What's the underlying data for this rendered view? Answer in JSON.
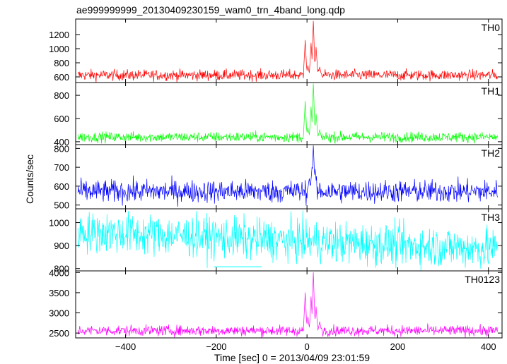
{
  "chart_data": {
    "type": "line",
    "title": "ae999999999_20130409230159_wam0_trn_4band_long.qdp",
    "xlabel": "Time [sec] 0 = 2013/04/09 23:01:59",
    "ylabel": "Counts/sec",
    "xlim": [
      -510,
      430
    ],
    "x_ticks": [
      -400,
      -200,
      0,
      200,
      400
    ],
    "x_tick_labels": [
      "−400",
      "−200",
      "0",
      "200",
      "400"
    ],
    "grid": false,
    "panels": [
      {
        "name": "TH0",
        "color": "#ff0000",
        "ylim": [
          520,
          1420
        ],
        "y_ticks": [
          600,
          800,
          1000,
          1200
        ],
        "baseline": 625,
        "noise": 38,
        "features": [
          {
            "x": -4,
            "value": 1120
          },
          {
            "x": 2,
            "value": 760
          },
          {
            "x": 9,
            "value": 1080
          },
          {
            "x": 14,
            "value": 1390
          },
          {
            "x": 20,
            "value": 1020
          },
          {
            "x": 28,
            "value": 740
          }
        ]
      },
      {
        "name": "TH1",
        "color": "#00ff00",
        "ylim": [
          375,
          910
        ],
        "y_ticks": [
          400,
          600,
          800
        ],
        "baseline": 440,
        "noise": 22,
        "features": [
          {
            "x": -4,
            "value": 750
          },
          {
            "x": 2,
            "value": 520
          },
          {
            "x": 9,
            "value": 700
          },
          {
            "x": 14,
            "value": 900
          },
          {
            "x": 20,
            "value": 640
          },
          {
            "x": 28,
            "value": 500
          }
        ]
      },
      {
        "name": "TH2",
        "color": "#0000ff",
        "ylim": [
          480,
          820
        ],
        "y_ticks": [
          500,
          600,
          700,
          800
        ],
        "baseline": 572,
        "noise": 30,
        "features": [
          {
            "x": 5,
            "value": 640
          },
          {
            "x": 11,
            "value": 700
          },
          {
            "x": 14,
            "value": 815
          },
          {
            "x": 18,
            "value": 690
          }
        ]
      },
      {
        "name": "TH3",
        "color": "#00ffff",
        "ylim": [
          790,
          1060
        ],
        "y_ticks": [
          800,
          900,
          1000
        ],
        "baseline_start": 960,
        "baseline_end": 885,
        "noise": 45,
        "segment": {
          "x0": -205,
          "x1": -100,
          "value": 808
        }
      },
      {
        "name": "TH0123",
        "color": "#ff00ff",
        "ylim": [
          2380,
          4040
        ],
        "y_ticks": [
          2500,
          3000,
          3500,
          4000
        ],
        "baseline": 2560,
        "noise": 65,
        "features": [
          {
            "x": -4,
            "value": 3500
          },
          {
            "x": 2,
            "value": 2900
          },
          {
            "x": 9,
            "value": 3400
          },
          {
            "x": 14,
            "value": 4000
          },
          {
            "x": 20,
            "value": 3150
          },
          {
            "x": 28,
            "value": 2780
          }
        ]
      }
    ]
  }
}
